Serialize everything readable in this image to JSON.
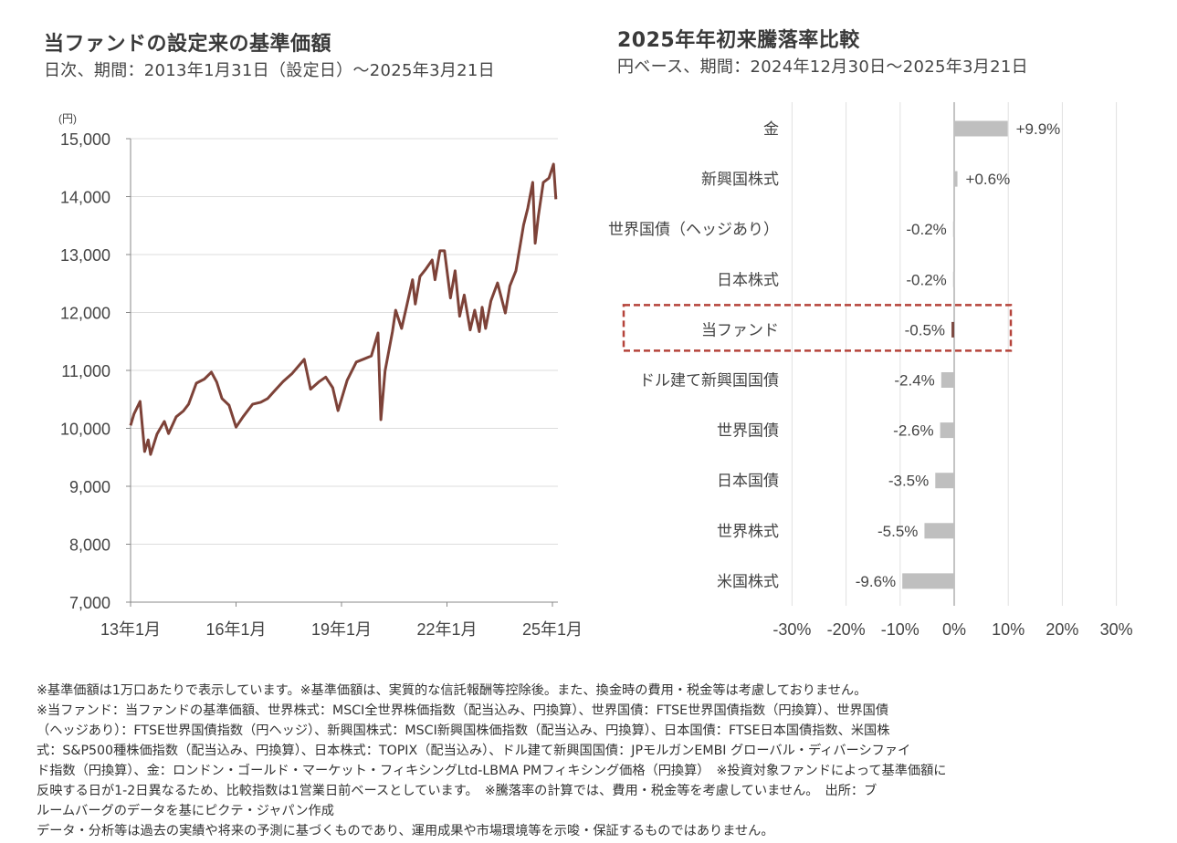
{
  "left": {
    "title": "当ファンドの設定来の基準価額",
    "subtitle": "日次、期間：2013年1月31日（設定日）～2025年3月21日"
  },
  "right": {
    "title": "2025年年初来騰落率比較",
    "subtitle": "円ベース、期間：2024年12月30日～2025年3月21日"
  },
  "chart_data": [
    {
      "type": "line",
      "title": "当ファンドの設定来の基準価額",
      "ylabel": "(円)",
      "xlabel": "",
      "ylim": [
        7000,
        15000
      ],
      "yticks": [
        7000,
        8000,
        9000,
        10000,
        11000,
        12000,
        13000,
        14000,
        15000
      ],
      "ytick_labels": [
        "7,000",
        "8,000",
        "9,000",
        "10,000",
        "11,000",
        "12,000",
        "13,000",
        "14,000",
        "15,000"
      ],
      "xlim": [
        2013.0,
        2025.1
      ],
      "xticks": [
        2013,
        2016,
        2019,
        2022,
        2025
      ],
      "xtick_labels": [
        "13年1月",
        "16年1月",
        "19年1月",
        "22年1月",
        "25年1月"
      ],
      "grid": true,
      "color": "#7d4238",
      "x": [
        2013.0,
        2013.1,
        2013.27,
        2013.4,
        2013.5,
        2013.57,
        2013.75,
        2013.96,
        2014.08,
        2014.3,
        2014.5,
        2014.65,
        2014.87,
        2015.1,
        2015.3,
        2015.45,
        2015.6,
        2015.8,
        2016.0,
        2016.2,
        2016.47,
        2016.7,
        2016.9,
        2017.1,
        2017.34,
        2017.6,
        2017.94,
        2018.12,
        2018.35,
        2018.55,
        2018.75,
        2018.9,
        2019.16,
        2019.42,
        2019.65,
        2019.85,
        2020.04,
        2020.12,
        2020.24,
        2020.45,
        2020.54,
        2020.71,
        2020.85,
        2021.02,
        2021.1,
        2021.23,
        2021.4,
        2021.58,
        2021.66,
        2021.8,
        2021.93,
        2022.1,
        2022.23,
        2022.36,
        2022.49,
        2022.66,
        2022.79,
        2022.92,
        2023.0,
        2023.1,
        2023.25,
        2023.44,
        2023.66,
        2023.79,
        2023.96,
        2024.18,
        2024.3,
        2024.44,
        2024.51,
        2024.6,
        2024.74,
        2024.9,
        2025.03,
        2025.1
      ],
      "y": [
        10050,
        10250,
        10465,
        9600,
        9800,
        9550,
        9900,
        10120,
        9910,
        10200,
        10300,
        10415,
        10780,
        10850,
        10970,
        10800,
        10515,
        10400,
        10020,
        10200,
        10415,
        10450,
        10515,
        10650,
        10810,
        10950,
        11190,
        10675,
        10800,
        10885,
        10700,
        10305,
        10830,
        11145,
        11200,
        11250,
        11645,
        10150,
        10990,
        11670,
        12040,
        11725,
        12100,
        12565,
        12145,
        12620,
        12750,
        12905,
        12565,
        13065,
        13065,
        12250,
        12720,
        11935,
        12300,
        11700,
        12040,
        11670,
        12090,
        11725,
        12200,
        12510,
        11990,
        12460,
        12720,
        13510,
        13800,
        14245,
        13195,
        13665,
        14245,
        14320,
        14560,
        13955
      ]
    },
    {
      "type": "bar",
      "orientation": "horizontal",
      "title": "2025年年初来騰落率比較",
      "categories": [
        "金",
        "新興国株式",
        "世界国債（ヘッジあり）",
        "日本株式",
        "当ファンド",
        "ドル建て新興国国債",
        "世界国債",
        "日本国債",
        "世界株式",
        "米国株式"
      ],
      "values": [
        9.9,
        0.6,
        -0.2,
        -0.2,
        -0.5,
        -2.4,
        -2.6,
        -3.5,
        -5.5,
        -9.6
      ],
      "value_labels": [
        "+9.9%",
        "+0.6%",
        "-0.2%",
        "-0.2%",
        "-0.5%",
        "-2.4%",
        "-2.6%",
        "-3.5%",
        "-5.5%",
        "-9.6%"
      ],
      "highlight": "当ファンド",
      "xlim": [
        -30,
        30
      ],
      "xticks": [
        -30,
        -20,
        -10,
        0,
        10,
        20,
        30
      ],
      "xtick_labels": [
        "-30%",
        "-20%",
        "-10%",
        "0%",
        "10%",
        "20%",
        "30%"
      ],
      "grid": true,
      "bar_color": "#bfbfbf",
      "highlight_color": "#7d4a42",
      "highlight_box_color": "#b5433a"
    }
  ],
  "notes": [
    "※基準価額は1万口あたりで表示しています。※基準価額は、実質的な信託報酬等控除後。また、換金時の費用・税金等は考慮しておりません。",
    "※当ファンド：当ファンドの基準価額、世界株式：MSCI全世界株価指数（配当込み、円換算）、世界国債：FTSE世界国債指数（円換算）、世界国債",
    "（ヘッジあり）：FTSE世界国債指数（円ヘッジ）、新興国株式：MSCI新興国株価指数（配当込み、円換算）、日本国債：FTSE日本国債指数、米国株",
    "式：S&P500種株価指数（配当込み、円換算）、日本株式：TOPIX（配当込み）、ドル建て新興国国債：JPモルガンEMBI グローバル・ディバーシファイ",
    "ド指数（円換算）、金：ロンドン・ゴールド・マーケット・フィキシングLtd-LBMA PMフィキシング価格（円換算）　※投資対象ファンドによって基準価額に",
    "反映する日が1-2日異なるため、比較指数は1営業日前ベースとしています。　※騰落率の計算では、費用・税金等を考慮していません。　出所：ブ",
    "ルームバーグのデータを基にピクテ・ジャパン作成",
    "データ・分析等は過去の実績や将来の予測に基づくものであり、運用成果や市場環境等を示唆・保証するものではありません。"
  ]
}
